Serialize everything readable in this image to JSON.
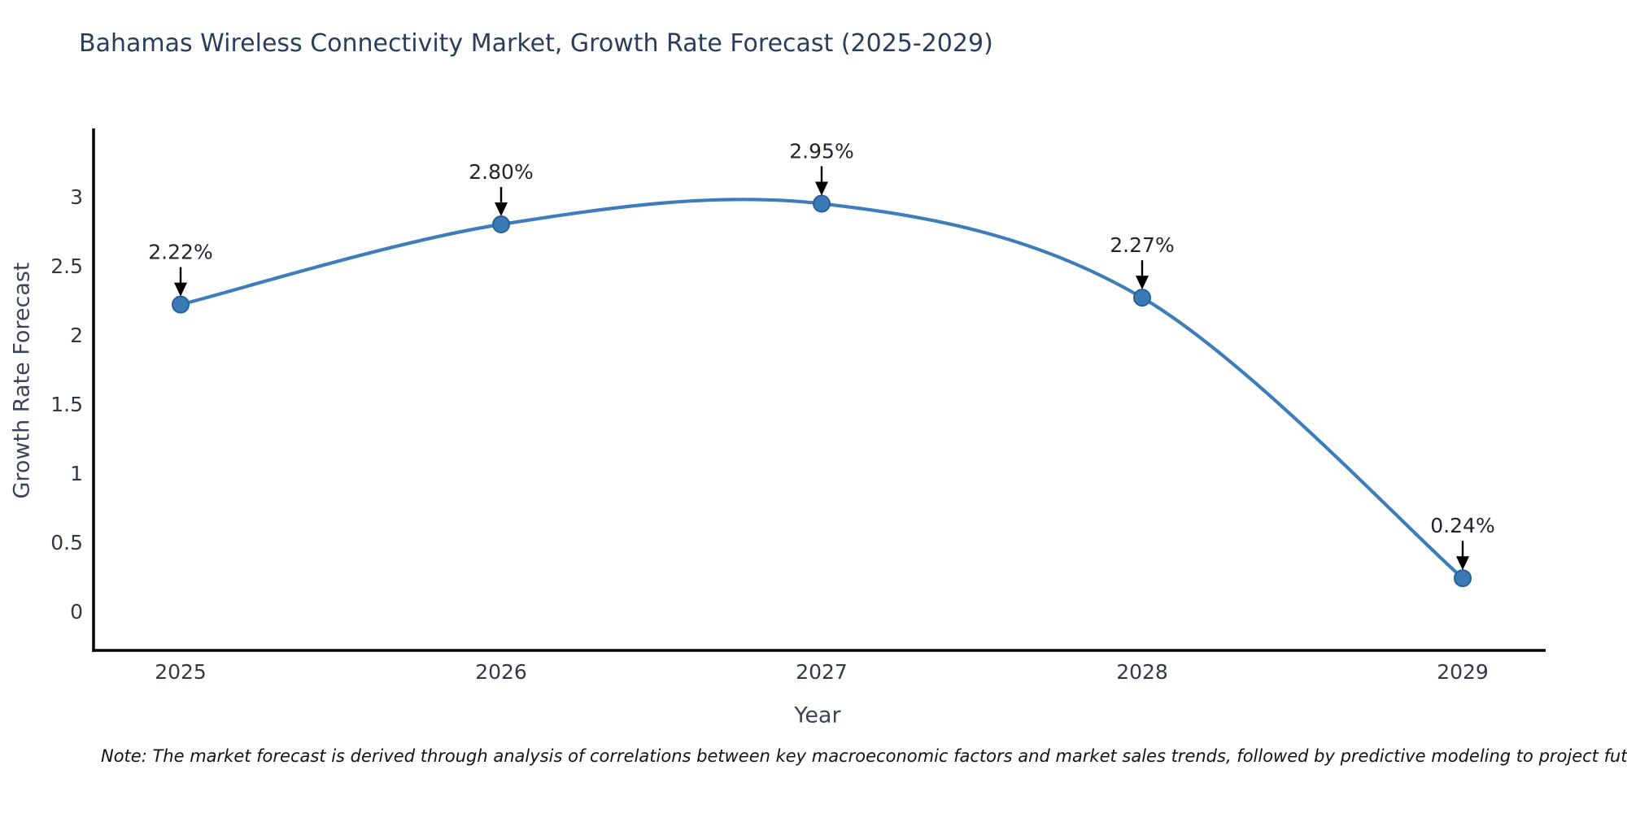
{
  "title": "Bahamas Wireless Connectivity Market, Growth Rate Forecast (2025-2029)",
  "note": "Note: The market forecast is derived through analysis of correlations between key macroeconomic factors and market sales trends, followed by predictive modeling to project future sales",
  "chart_data": {
    "type": "line",
    "title": "Bahamas Wireless Connectivity Market, Growth Rate Forecast (2025-2029)",
    "xlabel": "Year",
    "ylabel": "Growth Rate Forecast",
    "x": [
      2025,
      2026,
      2027,
      2028,
      2029
    ],
    "x_tick_labels": [
      "2025",
      "2026",
      "2027",
      "2028",
      "2029"
    ],
    "series": [
      {
        "name": "Growth Rate Forecast",
        "values": [
          2.22,
          2.8,
          2.95,
          2.27,
          0.24
        ]
      }
    ],
    "point_labels": [
      "2.22%",
      "2.80%",
      "2.95%",
      "2.27%",
      "0.24%"
    ],
    "y_ticks": [
      0,
      0.5,
      1,
      1.5,
      2,
      2.5,
      3
    ],
    "y_tick_labels": [
      "0",
      "0.5",
      "1",
      "1.5",
      "2",
      "2.5",
      "3"
    ],
    "ylim": [
      -0.3,
      3.47
    ],
    "xlim": [
      2024.73,
      2029.26
    ],
    "grid": false,
    "legend_position": "none",
    "line_shape": "spline",
    "annotation_arrows": true,
    "colors": {
      "line": "#3e7db9",
      "marker_fill": "#3a7ab6",
      "marker_edge": "#2a6195",
      "axis_line": "#000000",
      "title_text": "#2b3d5b",
      "axis_label_text": "#3b4458",
      "tick_text": "#333845",
      "annotation_text": "#20242e",
      "arrow": "#000000",
      "background": "#ffffff"
    }
  }
}
